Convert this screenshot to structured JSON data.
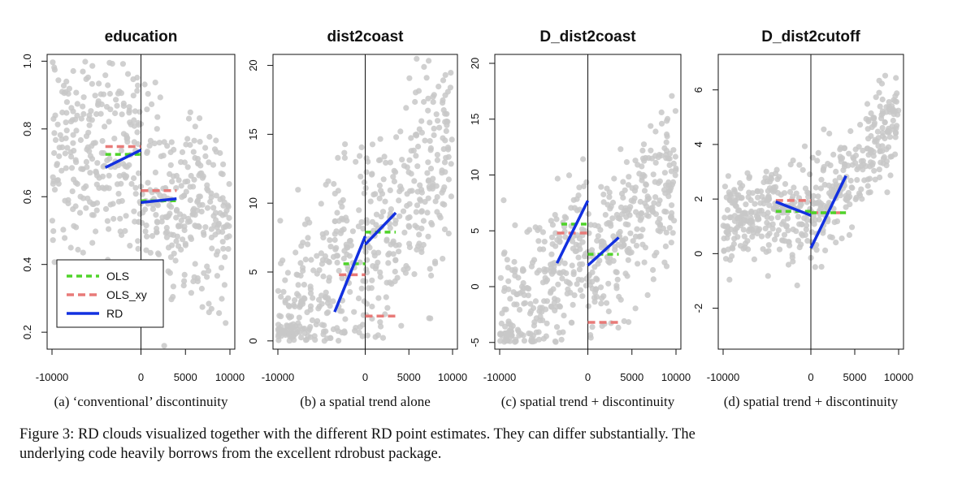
{
  "colors": {
    "points": "#c8c8c8",
    "ols": "#4fd32a",
    "ols_xy": "#e87a78",
    "rd": "#1230e0",
    "axis": "#111111"
  },
  "legend": {
    "items": [
      {
        "label": "OLS",
        "style": "ols"
      },
      {
        "label": "OLS_xy",
        "style": "ols_xy"
      },
      {
        "label": "RD",
        "style": "rd"
      }
    ]
  },
  "chart_data": [
    {
      "type": "scatter",
      "title": "education",
      "subtitle": "(a) ‘conventional’ discontinuity",
      "xlim": [
        -10000,
        10000
      ],
      "ylim": [
        0.15,
        1.02
      ],
      "xticks": [
        -10000,
        0,
        5000,
        10000
      ],
      "yticks": [
        0.2,
        0.4,
        0.6,
        0.8,
        1.0
      ],
      "cutoff": 0,
      "cloud": {
        "left_center": 0.7,
        "left_slope": 0.0,
        "right_center": 0.62,
        "right_slope": -8e-06,
        "spread": 0.14,
        "ymin": 0.15,
        "ymax": 1.0
      },
      "estimates": {
        "ols": [
          {
            "x": [
              -4000,
              0
            ],
            "y": [
              0.725,
              0.725
            ]
          },
          {
            "x": [
              0,
              4000
            ],
            "y": [
              0.588,
              0.588
            ]
          }
        ],
        "ols_xy": [
          {
            "x": [
              -4000,
              0
            ],
            "y": [
              0.748,
              0.748
            ]
          },
          {
            "x": [
              0,
              4000
            ],
            "y": [
              0.618,
              0.618
            ]
          }
        ],
        "rd": [
          {
            "x": [
              -4000,
              0
            ],
            "y": [
              0.686,
              0.738
            ]
          },
          {
            "x": [
              0,
              4000
            ],
            "y": [
              0.583,
              0.594
            ]
          }
        ]
      },
      "legend_position": "bottom-left"
    },
    {
      "type": "scatter",
      "title": "dist2coast",
      "subtitle": "(b) a spatial trend alone",
      "xlim": [
        -10000,
        10000
      ],
      "ylim": [
        -0.6,
        20.8
      ],
      "xticks": [
        -10000,
        0,
        5000,
        10000
      ],
      "yticks": [
        0,
        5,
        10,
        15,
        20
      ],
      "cutoff": 0,
      "cloud": {
        "left_center": 7.0,
        "left_slope": 0.0007,
        "right_center": 7.0,
        "right_slope": 0.0007,
        "spread": 4.0,
        "ymin": 0,
        "ymax": 20.5
      },
      "estimates": {
        "ols": [
          {
            "x": [
              -2500,
              0
            ],
            "y": [
              5.6,
              5.6
            ]
          },
          {
            "x": [
              0,
              3500
            ],
            "y": [
              7.9,
              7.9
            ]
          }
        ],
        "ols_xy": [
          {
            "x": [
              -3000,
              0
            ],
            "y": [
              4.8,
              4.8
            ]
          },
          {
            "x": [
              0,
              3500
            ],
            "y": [
              1.8,
              1.8
            ]
          }
        ],
        "rd": [
          {
            "x": [
              -3500,
              0
            ],
            "y": [
              2.1,
              7.6
            ]
          },
          {
            "x": [
              0,
              3500
            ],
            "y": [
              7.0,
              9.3
            ]
          }
        ]
      }
    },
    {
      "type": "scatter",
      "title": "D_dist2coast",
      "subtitle": "(c) spatial trend + discontinuity",
      "xlim": [
        -10000,
        10000
      ],
      "ylim": [
        -5.6,
        20.8
      ],
      "xticks": [
        -10000,
        0,
        5000,
        10000
      ],
      "yticks": [
        -5,
        0,
        5,
        10,
        15,
        20
      ],
      "cutoff": 0,
      "cloud": {
        "left_center": 4.0,
        "left_slope": 0.0008,
        "right_center": 1.0,
        "right_slope": 0.0009,
        "spread": 3.5,
        "ymin": -5,
        "ymax": 20.5
      },
      "estimates": {
        "ols": [
          {
            "x": [
              -3000,
              0
            ],
            "y": [
              5.6,
              5.6
            ]
          },
          {
            "x": [
              0,
              3500
            ],
            "y": [
              2.9,
              2.9
            ]
          }
        ],
        "ols_xy": [
          {
            "x": [
              -3500,
              0
            ],
            "y": [
              4.8,
              4.8
            ]
          },
          {
            "x": [
              0,
              3500
            ],
            "y": [
              -3.2,
              -3.2
            ]
          }
        ],
        "rd": [
          {
            "x": [
              -3500,
              0
            ],
            "y": [
              2.1,
              7.7
            ]
          },
          {
            "x": [
              0,
              3500
            ],
            "y": [
              1.9,
              4.4
            ]
          }
        ]
      }
    },
    {
      "type": "scatter",
      "title": "D_dist2cutoff",
      "subtitle": "(d) spatial trend + discontinuity",
      "xlim": [
        -10000,
        10000
      ],
      "ylim": [
        -3.5,
        7.3
      ],
      "xticks": [
        -10000,
        0,
        5000,
        10000
      ],
      "yticks": [
        -2,
        0,
        2,
        4,
        6
      ],
      "cutoff": 0,
      "cloud": {
        "left_center": 1.6,
        "left_slope": 4e-05,
        "right_center": 1.2,
        "right_slope": 0.00036,
        "spread": 0.9,
        "ymin": -2.3,
        "ymax": 7.0
      },
      "estimates": {
        "ols": [
          {
            "x": [
              -4000,
              0
            ],
            "y": [
              1.55,
              1.55
            ]
          },
          {
            "x": [
              0,
              4000
            ],
            "y": [
              1.5,
              1.5
            ]
          }
        ],
        "ols_xy": [
          {
            "x": [
              -4000,
              0
            ],
            "y": [
              1.95,
              1.95
            ]
          },
          {
            "x": [
              0,
              4000
            ],
            "y": [
              1.5,
              1.5
            ]
          }
        ],
        "rd": [
          {
            "x": [
              -4000,
              0
            ],
            "y": [
              1.9,
              1.4
            ]
          },
          {
            "x": [
              0,
              4000
            ],
            "y": [
              0.2,
              2.85
            ]
          }
        ]
      }
    }
  ],
  "caption": {
    "line1": "Figure 3: RD clouds visualized together with the different RD point estimates. They can differ substantially. The",
    "line2": "underlying code heavily borrows from the excellent rdrobust package."
  }
}
